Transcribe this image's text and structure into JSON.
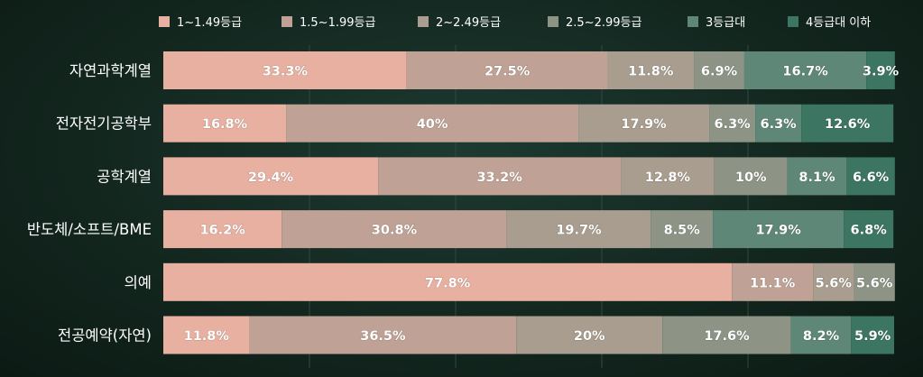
{
  "chart_data": {
    "type": "bar",
    "orientation": "horizontal",
    "stacked": true,
    "legend_position": "top",
    "xlim": [
      0,
      100
    ],
    "categories": [
      "자연과학계열",
      "전자전기공학부",
      "공학계열",
      "반도체/소프트/BME",
      "의예",
      "전공예약(자연)"
    ],
    "series": [
      {
        "name": "1~1.49등급",
        "color": "#e8b0a0",
        "values": [
          33.3,
          16.8,
          29.4,
          16.2,
          77.8,
          11.8
        ]
      },
      {
        "name": "1.5~1.99등급",
        "color": "#bfa295",
        "values": [
          27.5,
          40,
          33.2,
          30.8,
          11.1,
          36.5
        ]
      },
      {
        "name": "2~2.49등급",
        "color": "#a89d8e",
        "values": [
          11.8,
          17.9,
          12.8,
          19.7,
          5.6,
          20
        ]
      },
      {
        "name": "2.5~2.99등급",
        "color": "#8d9385",
        "values": [
          6.9,
          6.3,
          10,
          8.5,
          5.6,
          17.6
        ]
      },
      {
        "name": "3등급대",
        "color": "#5e8777",
        "values": [
          16.7,
          6.3,
          8.1,
          17.9,
          0,
          8.2
        ]
      },
      {
        "name": "4등급대 이하",
        "color": "#3c7562",
        "values": [
          3.9,
          12.6,
          6.6,
          6.8,
          0,
          5.9
        ]
      }
    ],
    "data_labels": [
      [
        "33.3%",
        "27.5%",
        "11.8%",
        "6.9%",
        "16.7%",
        "3.9%"
      ],
      [
        "16.8%",
        "40%",
        "17.9%",
        "6.3%",
        "6.3%",
        "12.6%"
      ],
      [
        "29.4%",
        "33.2%",
        "12.8%",
        "10%",
        "8.1%",
        "6.6%"
      ],
      [
        "16.2%",
        "30.8%",
        "19.7%",
        "8.5%",
        "17.9%",
        "6.8%"
      ],
      [
        "77.8%",
        "11.1%",
        "5.6%",
        "5.6%",
        "",
        ""
      ],
      [
        "11.8%",
        "36.5%",
        "20%",
        "17.6%",
        "8.2%",
        "5.9%"
      ]
    ]
  }
}
